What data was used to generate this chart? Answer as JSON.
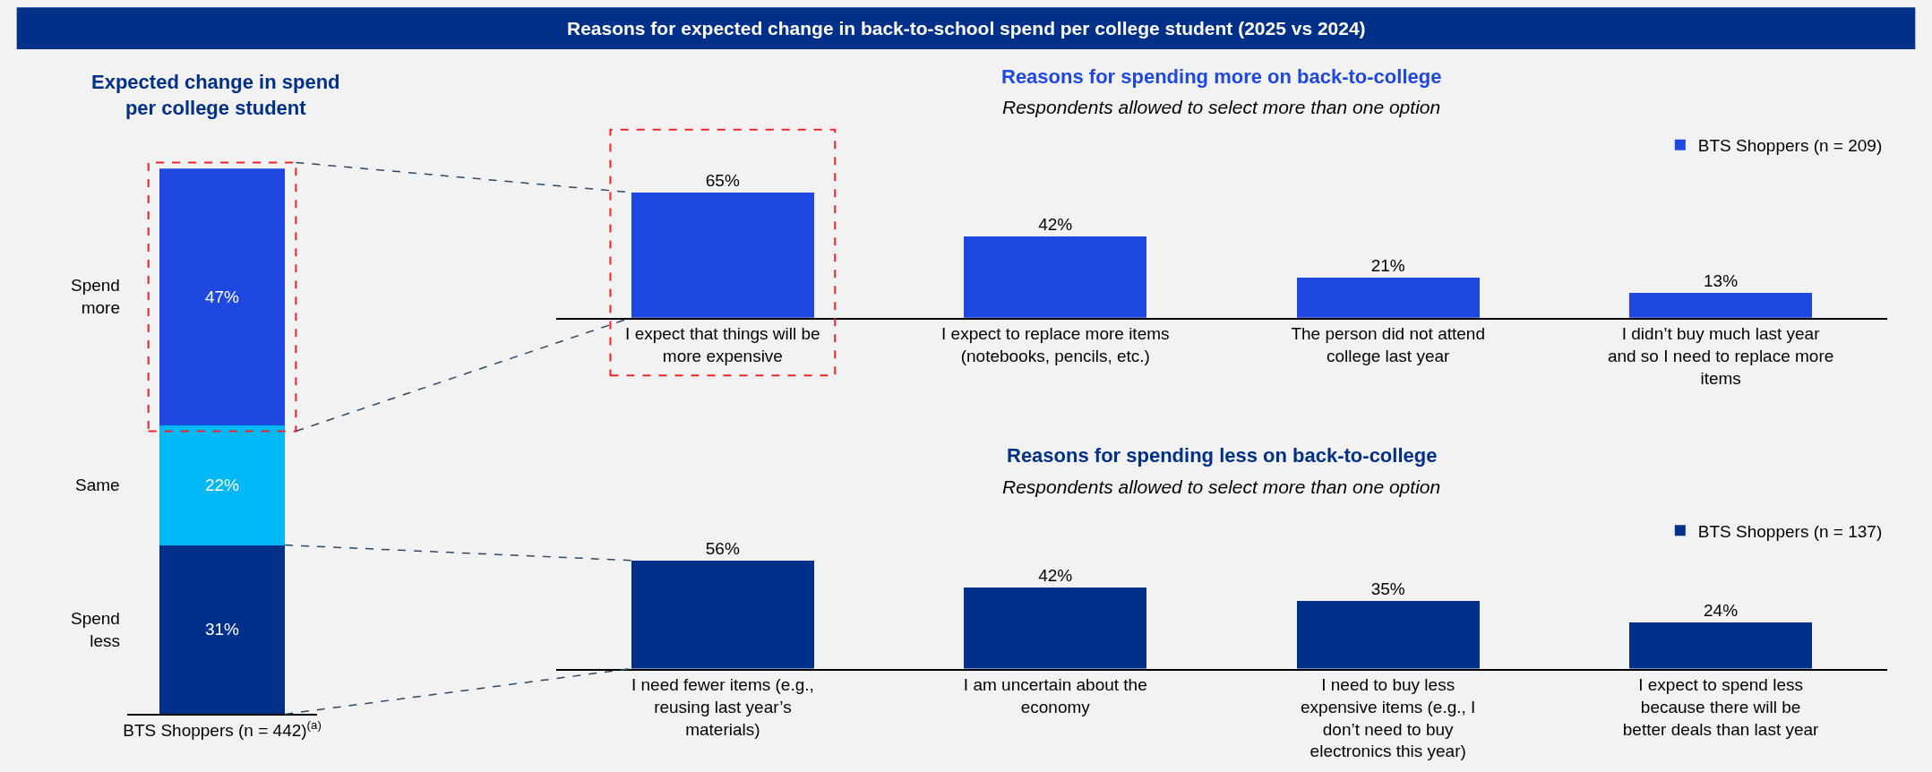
{
  "chart_data": [
    {
      "type": "other",
      "title": "Reasons for expected change in back-to-school spend per college student (2025 vs 2024)"
    },
    {
      "type": "bar",
      "title": "Expected change in spend per college student",
      "stacked": true,
      "legend": false,
      "categories": [
        "BTS Shoppers (n = 442)$^{(a)}$"
      ],
      "series": [
        {
          "name": "Spend less",
          "color": "#00308a",
          "values": [
            31
          ],
          "value_labels": [
            "31%"
          ]
        },
        {
          "name": "Same",
          "color": "#00b8f5",
          "values": [
            22
          ],
          "value_labels": [
            "22%"
          ]
        },
        {
          "name": "Spend more",
          "color": "#1f48e0",
          "values": [
            47
          ],
          "value_labels": [
            "47%"
          ]
        }
      ]
    },
    {
      "type": "bar",
      "title": "Reasons for spending more on back-to-college",
      "subtitle": "Respondents allowed to select more than one option",
      "legend": "top right",
      "categories": [
        "I expect that things will be more expensive",
        "I expect to replace more items (notebooks, pencils, etc.)",
        "The person did not attend college last year",
        "I didn’t buy much last year and so I need to replace more items"
      ],
      "series": [
        {
          "name": "BTS Shoppers (n = 209)",
          "color": "#1f48e0",
          "values": [
            65,
            42,
            21,
            13
          ],
          "value_labels": [
            "65%",
            "42%",
            "21%",
            "13%"
          ]
        }
      ]
    },
    {
      "type": "bar",
      "title": "Reasons for spending less on back-to-college",
      "subtitle": "Respondents allowed to select more than one option",
      "legend": "top right",
      "categories": [
        "I need fewer items (e.g., reusing last year’s materials)",
        "I am uncertain about the economy",
        "I need to buy less expensive items (e.g., I don’t need to buy electronics this year)",
        "I expect to spend less because there will be better deals than last year"
      ],
      "series": [
        {
          "name": "BTS Shoppers (n = 137)",
          "color": "#00308a",
          "values": [
            56,
            42,
            35,
            24
          ],
          "value_labels": [
            "56%",
            "42%",
            "35%",
            "24%"
          ]
        }
      ]
    }
  ]
}
